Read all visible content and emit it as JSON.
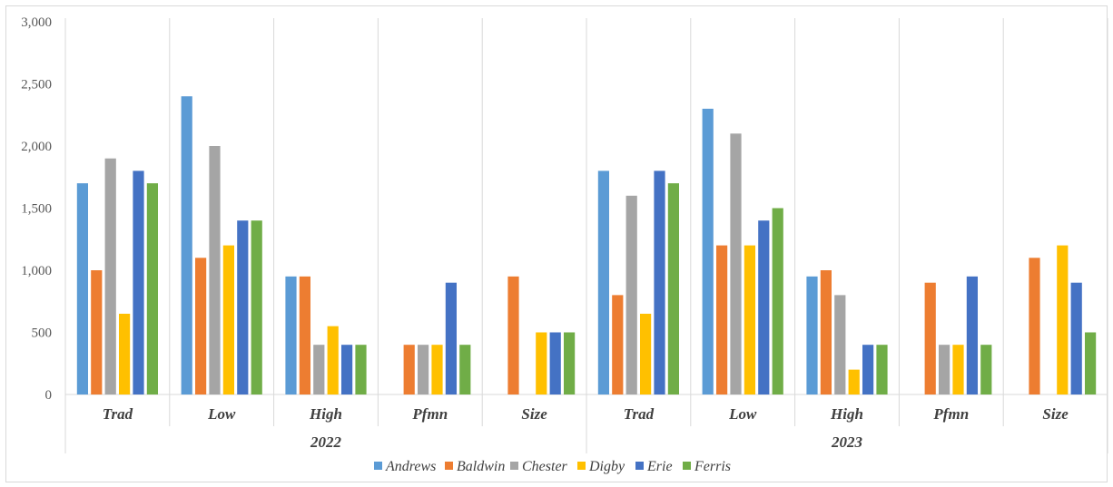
{
  "chart_data": {
    "type": "bar",
    "ylim": [
      0,
      3000
    ],
    "yticks": [
      "0",
      "500",
      "1,000",
      "1,500",
      "2,000",
      "2,500",
      "3,000"
    ],
    "ytick_values": [
      0,
      500,
      1000,
      1500,
      2000,
      2500,
      3000
    ],
    "grid": false,
    "legend_position": "bottom",
    "groups": [
      {
        "label": "2022",
        "categories": [
          "Trad",
          "Low",
          "High",
          "Pfmn",
          "Size"
        ]
      },
      {
        "label": "2023",
        "categories": [
          "Trad",
          "Low",
          "High",
          "Pfmn",
          "Size"
        ]
      }
    ],
    "series": [
      {
        "name": "Andrews",
        "color": "#5b9bd5",
        "values": [
          1700,
          2400,
          950,
          0,
          0,
          1800,
          2300,
          950,
          0,
          0
        ]
      },
      {
        "name": "Baldwin",
        "color": "#ed7d31",
        "values": [
          1000,
          1100,
          950,
          400,
          950,
          800,
          1200,
          1000,
          900,
          1100
        ]
      },
      {
        "name": "Chester",
        "color": "#a5a5a5",
        "values": [
          1900,
          2000,
          400,
          400,
          0,
          1600,
          2100,
          800,
          400,
          0
        ]
      },
      {
        "name": "Digby",
        "color": "#ffc000",
        "values": [
          650,
          1200,
          550,
          400,
          500,
          650,
          1200,
          200,
          400,
          1200
        ]
      },
      {
        "name": "Erie",
        "color": "#4472c4",
        "values": [
          1800,
          1400,
          400,
          900,
          500,
          1800,
          1400,
          400,
          950,
          900
        ]
      },
      {
        "name": "Ferris",
        "color": "#70ad47",
        "values": [
          1700,
          1400,
          400,
          400,
          500,
          1700,
          1500,
          400,
          400,
          500
        ]
      }
    ]
  }
}
